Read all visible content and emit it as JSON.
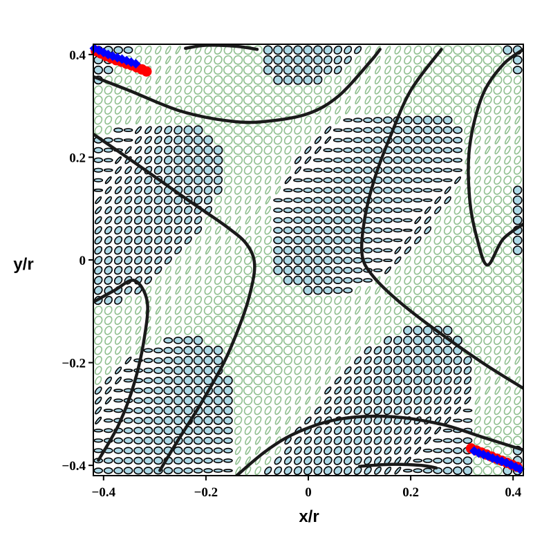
{
  "chart_data": {
    "type": "scatter",
    "title": "",
    "xlabel": "x/r",
    "ylabel": "y/r",
    "xlim": [
      -0.42,
      0.42
    ],
    "ylim": [
      -0.42,
      0.42
    ],
    "x_ticks": [
      -0.4,
      -0.2,
      0,
      0.2,
      0.4
    ],
    "y_ticks": [
      -0.4,
      -0.2,
      0,
      0.2,
      0.4
    ],
    "x_tick_labels": [
      "−0.4",
      "−0.2",
      "0",
      "0.2",
      "0.4"
    ],
    "y_tick_labels": [
      "−0.4",
      "−0.2",
      "0",
      "0.2",
      "0.4"
    ],
    "grid": false,
    "legend": "none",
    "field": {
      "description_visible": "ellipse glyph field on a square lattice",
      "lattice_step": 0.0195,
      "glyph_colors": {
        "filled_fill": "#add8e6",
        "filled_stroke": "#000000",
        "hollow_stroke": "#8fbf8f"
      }
    },
    "series": [
      {
        "kind": "curve",
        "color": "#1a1a1a",
        "points": [
          [
            -0.42,
            0.357
          ],
          [
            -0.35,
            0.33
          ],
          [
            -0.25,
            0.29
          ],
          [
            -0.15,
            0.27
          ],
          [
            -0.08,
            0.27
          ],
          [
            0.0,
            0.285
          ],
          [
            0.06,
            0.32
          ],
          [
            0.12,
            0.385
          ],
          [
            0.14,
            0.41
          ]
        ]
      },
      {
        "kind": "curve",
        "color": "#1a1a1a",
        "points": [
          [
            -0.42,
            0.245
          ],
          [
            -0.34,
            0.19
          ],
          [
            -0.24,
            0.12
          ],
          [
            -0.16,
            0.065
          ],
          [
            -0.12,
            0.03
          ],
          [
            -0.105,
            -0.01
          ],
          [
            -0.115,
            -0.07
          ],
          [
            -0.135,
            -0.13
          ],
          [
            -0.165,
            -0.2
          ],
          [
            -0.21,
            -0.28
          ],
          [
            -0.26,
            -0.36
          ],
          [
            -0.29,
            -0.41
          ]
        ]
      },
      {
        "kind": "curve",
        "color": "#1a1a1a",
        "points": [
          [
            -0.42,
            -0.082
          ],
          [
            -0.38,
            -0.06
          ],
          [
            -0.34,
            -0.04
          ],
          [
            -0.315,
            -0.08
          ],
          [
            -0.32,
            -0.15
          ],
          [
            -0.34,
            -0.24
          ],
          [
            -0.37,
            -0.32
          ],
          [
            -0.41,
            -0.39
          ]
        ]
      },
      {
        "kind": "curve",
        "color": "#1a1a1a",
        "points": [
          [
            -0.14,
            -0.42
          ],
          [
            -0.08,
            -0.37
          ],
          [
            -0.02,
            -0.335
          ],
          [
            0.06,
            -0.31
          ],
          [
            0.16,
            -0.305
          ],
          [
            0.26,
            -0.32
          ],
          [
            0.34,
            -0.345
          ],
          [
            0.42,
            -0.37
          ]
        ]
      },
      {
        "kind": "curve",
        "color": "#1a1a1a",
        "points": [
          [
            0.42,
            -0.25
          ],
          [
            0.34,
            -0.2
          ],
          [
            0.24,
            -0.13
          ],
          [
            0.17,
            -0.075
          ],
          [
            0.125,
            -0.03
          ],
          [
            0.105,
            0.01
          ],
          [
            0.11,
            0.08
          ],
          [
            0.13,
            0.16
          ],
          [
            0.16,
            0.24
          ],
          [
            0.2,
            0.33
          ],
          [
            0.26,
            0.41
          ]
        ]
      },
      {
        "kind": "curve",
        "color": "#1a1a1a",
        "points": [
          [
            0.42,
            0.41
          ],
          [
            0.38,
            0.38
          ],
          [
            0.34,
            0.32
          ],
          [
            0.315,
            0.22
          ],
          [
            0.315,
            0.12
          ],
          [
            0.33,
            0.04
          ],
          [
            0.35,
            -0.01
          ],
          [
            0.38,
            0.04
          ],
          [
            0.42,
            0.07
          ]
        ]
      },
      {
        "kind": "curve",
        "color": "#1a1a1a",
        "points": [
          [
            -0.24,
            0.412
          ],
          [
            -0.2,
            0.418
          ],
          [
            -0.14,
            0.416
          ],
          [
            -0.1,
            0.41
          ]
        ]
      },
      {
        "kind": "curve",
        "color": "#1a1a1a",
        "points": [
          [
            0.1,
            -0.402
          ],
          [
            0.16,
            -0.398
          ],
          [
            0.22,
            -0.4
          ],
          [
            0.25,
            -0.405
          ]
        ]
      },
      {
        "kind": "markers",
        "name": "",
        "color": "#ff0000",
        "marker": "circle",
        "points": [
          [
            -0.415,
            0.407
          ],
          [
            -0.405,
            0.402
          ],
          [
            -0.395,
            0.397
          ],
          [
            -0.385,
            0.393
          ],
          [
            -0.375,
            0.389
          ],
          [
            -0.365,
            0.386
          ],
          [
            -0.355,
            0.382
          ],
          [
            -0.345,
            0.379
          ],
          [
            -0.335,
            0.375
          ],
          [
            -0.325,
            0.371
          ],
          [
            -0.316,
            0.367
          ],
          [
            0.318,
            -0.367
          ],
          [
            0.328,
            -0.371
          ],
          [
            0.338,
            -0.375
          ],
          [
            0.348,
            -0.379
          ],
          [
            0.358,
            -0.383
          ],
          [
            0.368,
            -0.387
          ],
          [
            0.378,
            -0.391
          ],
          [
            0.388,
            -0.395
          ],
          [
            0.398,
            -0.399
          ],
          [
            0.408,
            -0.403
          ]
        ]
      },
      {
        "kind": "markers",
        "name": "",
        "color": "#0000ff",
        "marker": "diamond",
        "points": [
          [
            -0.418,
            0.412
          ],
          [
            -0.409,
            0.408
          ],
          [
            -0.4,
            0.404
          ],
          [
            -0.391,
            0.4
          ],
          [
            -0.382,
            0.397
          ],
          [
            -0.373,
            0.394
          ],
          [
            -0.364,
            0.391
          ],
          [
            -0.355,
            0.388
          ],
          [
            -0.346,
            0.385
          ],
          [
            -0.337,
            0.382
          ],
          [
            0.324,
            -0.372
          ],
          [
            0.333,
            -0.376
          ],
          [
            0.342,
            -0.379
          ],
          [
            0.351,
            -0.382
          ],
          [
            0.36,
            -0.386
          ],
          [
            0.369,
            -0.389
          ],
          [
            0.378,
            -0.392
          ],
          [
            0.387,
            -0.395
          ],
          [
            0.396,
            -0.399
          ],
          [
            0.405,
            -0.403
          ],
          [
            0.413,
            -0.407
          ]
        ]
      }
    ]
  }
}
